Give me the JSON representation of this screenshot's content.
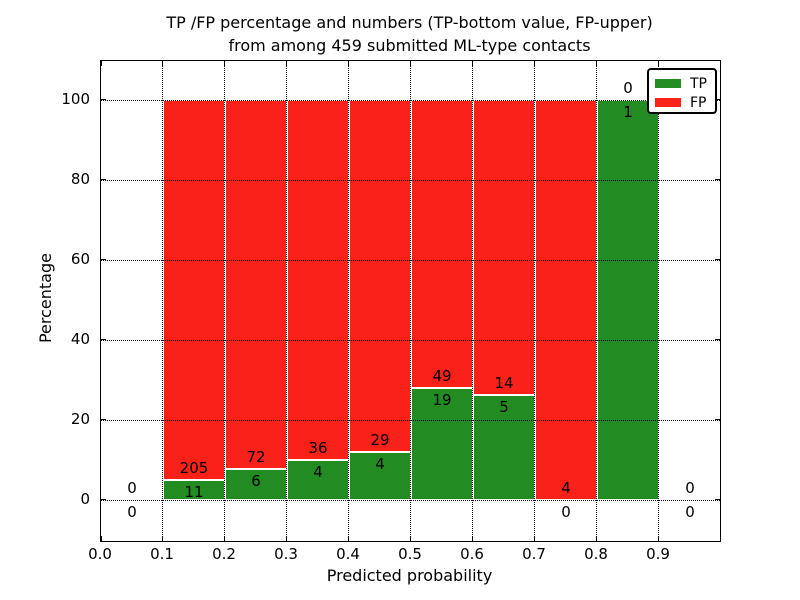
{
  "title": {
    "line1": "TP /FP percentage and numbers (TP-bottom value, FP-upper)",
    "line2": "from among 459 submitted ML-type contacts"
  },
  "chart_data": {
    "type": "bar",
    "stacked": true,
    "title": "TP /FP percentage and numbers (TP-bottom value, FP-upper) from among 459 submitted ML-type contacts",
    "xlabel": "Predicted probability",
    "ylabel": "Percentage",
    "xlim": [
      0.0,
      1.0
    ],
    "ylim": [
      -10.25,
      109.75
    ],
    "grid": true,
    "total_contacts": 459,
    "bin_width": 0.1,
    "colors": {
      "tp": "#228b22",
      "fp": "#fa2218"
    },
    "legend": {
      "position": "upper right",
      "entries": [
        {
          "label": "TP",
          "color": "#228b22"
        },
        {
          "label": "FP",
          "color": "#fa2218"
        }
      ]
    },
    "xticks": [
      {
        "value": 0.0,
        "label": "0.0"
      },
      {
        "value": 0.1,
        "label": "0.1"
      },
      {
        "value": 0.2,
        "label": "0.2"
      },
      {
        "value": 0.3,
        "label": "0.3"
      },
      {
        "value": 0.4,
        "label": "0.4"
      },
      {
        "value": 0.5,
        "label": "0.5"
      },
      {
        "value": 0.6,
        "label": "0.6"
      },
      {
        "value": 0.7,
        "label": "0.7"
      },
      {
        "value": 0.8,
        "label": "0.8"
      },
      {
        "value": 0.9,
        "label": "0.9"
      }
    ],
    "yticks": [
      {
        "value": 0,
        "label": "0"
      },
      {
        "value": 20,
        "label": "20"
      },
      {
        "value": 40,
        "label": "40"
      },
      {
        "value": 60,
        "label": "60"
      },
      {
        "value": 80,
        "label": "80"
      },
      {
        "value": 100,
        "label": "100"
      }
    ],
    "bins": [
      {
        "x_start": 0.0,
        "x_end": 0.1,
        "tp": 0,
        "fp": 0,
        "tp_pct": null,
        "fp_pct": null
      },
      {
        "x_start": 0.1,
        "x_end": 0.2,
        "tp": 11,
        "fp": 205,
        "tp_pct": 5.09,
        "fp_pct": 94.91
      },
      {
        "x_start": 0.2,
        "x_end": 0.3,
        "tp": 6,
        "fp": 72,
        "tp_pct": 7.69,
        "fp_pct": 92.31
      },
      {
        "x_start": 0.3,
        "x_end": 0.4,
        "tp": 4,
        "fp": 36,
        "tp_pct": 10.0,
        "fp_pct": 90.0
      },
      {
        "x_start": 0.4,
        "x_end": 0.5,
        "tp": 4,
        "fp": 29,
        "tp_pct": 12.12,
        "fp_pct": 87.88
      },
      {
        "x_start": 0.5,
        "x_end": 0.6,
        "tp": 19,
        "fp": 49,
        "tp_pct": 27.94,
        "fp_pct": 72.06
      },
      {
        "x_start": 0.6,
        "x_end": 0.7,
        "tp": 5,
        "fp": 14,
        "tp_pct": 26.32,
        "fp_pct": 73.68
      },
      {
        "x_start": 0.7,
        "x_end": 0.8,
        "tp": 0,
        "fp": 4,
        "tp_pct": 0.0,
        "fp_pct": 100.0
      },
      {
        "x_start": 0.8,
        "x_end": 0.9,
        "tp": 1,
        "fp": 0,
        "tp_pct": 100.0,
        "fp_pct": 0.0
      },
      {
        "x_start": 0.9,
        "x_end": 1.0,
        "tp": 0,
        "fp": 0,
        "tp_pct": null,
        "fp_pct": null
      }
    ]
  }
}
